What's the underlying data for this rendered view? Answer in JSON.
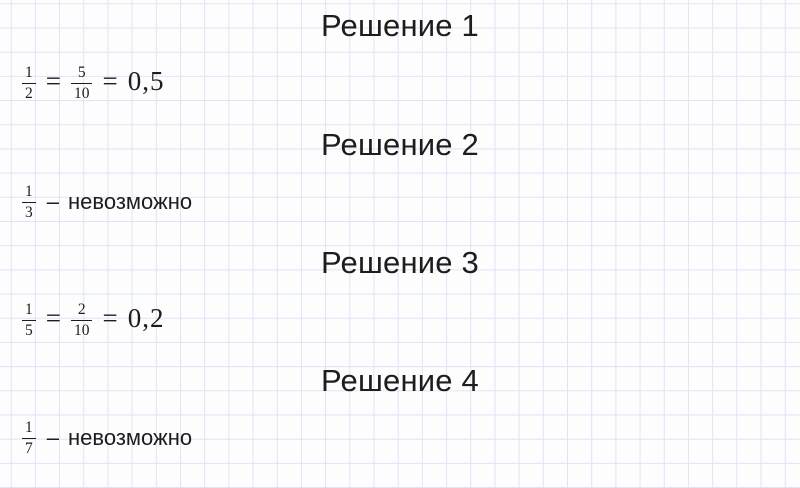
{
  "colors": {
    "background": "#fdfdfe",
    "grid_line": "#dde4f6",
    "text": "#1c1c1e"
  },
  "solutions": [
    {
      "heading": "Решение 1",
      "type": "equation",
      "fraction_a": {
        "numerator": "1",
        "denominator": "2"
      },
      "equals_1": "=",
      "fraction_b": {
        "numerator": "5",
        "denominator": "10"
      },
      "equals_2": "=",
      "result": "0,5"
    },
    {
      "heading": "Решение 2",
      "type": "impossible",
      "fraction_a": {
        "numerator": "1",
        "denominator": "3"
      },
      "dash": "–",
      "note": "невозможно"
    },
    {
      "heading": "Решение 3",
      "type": "equation",
      "fraction_a": {
        "numerator": "1",
        "denominator": "5"
      },
      "equals_1": "=",
      "fraction_b": {
        "numerator": "2",
        "denominator": "10"
      },
      "equals_2": "=",
      "result": "0,2"
    },
    {
      "heading": "Решение 4",
      "type": "impossible",
      "fraction_a": {
        "numerator": "1",
        "denominator": "7"
      },
      "dash": "–",
      "note": "невозможно"
    }
  ]
}
